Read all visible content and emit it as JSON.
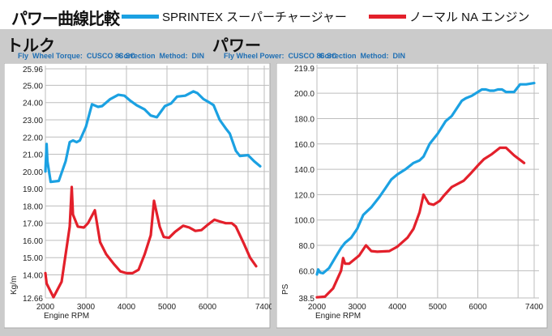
{
  "header": {
    "title": "パワー曲線比較",
    "legend": [
      {
        "label": "SPRINTEX スーパーチャージャー",
        "color": "#1ba1e2"
      },
      {
        "label": "ノーマル NA エンジン",
        "color": "#e3202b"
      }
    ]
  },
  "chart_data": [
    {
      "type": "line",
      "title": "トルク",
      "subtitle": "Fly  Wheel Torque:  CUSCO 86 SC",
      "correction": "Correction  Method:  DIN",
      "xlabel": "Engine RPM",
      "ylabel": "Kg/m",
      "xlim": [
        2000,
        7400
      ],
      "ylim": [
        12.66,
        25.96
      ],
      "xticks": [
        2000,
        3000,
        4000,
        5000,
        6000,
        7400
      ],
      "xgrid": [
        2000,
        3000,
        4000,
        5000,
        6000,
        7000,
        7400
      ],
      "yticks": [
        "12.66",
        "14.00",
        "15.00",
        "16.00",
        "17.00",
        "18.00",
        "19.00",
        "20.00",
        "21.00",
        "22.00",
        "23.00",
        "24.00",
        "25.00",
        "25.96"
      ],
      "series": [
        {
          "name": "SPRINTEX スーパーチャージャー",
          "color": "#1ba1e2",
          "points": [
            [
              2000,
              20.0
            ],
            [
              2030,
              21.6
            ],
            [
              2050,
              20.6
            ],
            [
              2130,
              19.4
            ],
            [
              2330,
              19.45
            ],
            [
              2500,
              20.6
            ],
            [
              2600,
              21.7
            ],
            [
              2680,
              21.8
            ],
            [
              2770,
              21.7
            ],
            [
              2850,
              21.8
            ],
            [
              3000,
              22.6
            ],
            [
              3150,
              23.9
            ],
            [
              3300,
              23.75
            ],
            [
              3400,
              23.8
            ],
            [
              3600,
              24.2
            ],
            [
              3800,
              24.45
            ],
            [
              3950,
              24.4
            ],
            [
              4100,
              24.1
            ],
            [
              4250,
              23.85
            ],
            [
              4450,
              23.6
            ],
            [
              4600,
              23.25
            ],
            [
              4750,
              23.15
            ],
            [
              4950,
              23.8
            ],
            [
              5100,
              23.95
            ],
            [
              5250,
              24.35
            ],
            [
              5450,
              24.4
            ],
            [
              5650,
              24.65
            ],
            [
              5750,
              24.55
            ],
            [
              5900,
              24.2
            ],
            [
              6050,
              24.0
            ],
            [
              6150,
              23.85
            ],
            [
              6300,
              23.0
            ],
            [
              6450,
              22.5
            ],
            [
              6550,
              22.2
            ],
            [
              6700,
              21.2
            ],
            [
              6800,
              20.9
            ],
            [
              7000,
              20.95
            ],
            [
              7150,
              20.6
            ],
            [
              7300,
              20.3
            ]
          ]
        },
        {
          "name": "ノーマル NA エンジン",
          "color": "#e3202b",
          "points": [
            [
              2000,
              14.1
            ],
            [
              2030,
              13.5
            ],
            [
              2200,
              12.7
            ],
            [
              2400,
              13.6
            ],
            [
              2600,
              16.8
            ],
            [
              2650,
              19.1
            ],
            [
              2680,
              17.5
            ],
            [
              2800,
              16.8
            ],
            [
              2950,
              16.75
            ],
            [
              3050,
              17.0
            ],
            [
              3220,
              17.75
            ],
            [
              3350,
              15.9
            ],
            [
              3500,
              15.2
            ],
            [
              3700,
              14.6
            ],
            [
              3850,
              14.2
            ],
            [
              4000,
              14.1
            ],
            [
              4150,
              14.1
            ],
            [
              4300,
              14.3
            ],
            [
              4450,
              15.2
            ],
            [
              4600,
              16.3
            ],
            [
              4680,
              18.3
            ],
            [
              4820,
              16.8
            ],
            [
              4920,
              16.2
            ],
            [
              5050,
              16.15
            ],
            [
              5200,
              16.5
            ],
            [
              5400,
              16.85
            ],
            [
              5550,
              16.75
            ],
            [
              5700,
              16.55
            ],
            [
              5850,
              16.6
            ],
            [
              6000,
              16.9
            ],
            [
              6170,
              17.2
            ],
            [
              6300,
              17.1
            ],
            [
              6450,
              17.0
            ],
            [
              6600,
              17.0
            ],
            [
              6700,
              16.8
            ],
            [
              6900,
              15.8
            ],
            [
              7050,
              15.0
            ],
            [
              7200,
              14.5
            ]
          ]
        }
      ]
    },
    {
      "type": "line",
      "title": "パワー",
      "subtitle": "Fly Wheel Power:  CUSCO 86 SC",
      "correction": "Correction  Method:  DIN",
      "xlabel": "Engine RPM",
      "ylabel": "PS",
      "xlim": [
        2000,
        7400
      ],
      "ylim": [
        38.5,
        219.9
      ],
      "xticks": [
        2000,
        3000,
        4000,
        5000,
        6000,
        7400
      ],
      "xgrid": [
        2000,
        3000,
        4000,
        5000,
        6000,
        7000,
        7400
      ],
      "yticks": [
        "38.5",
        "60.0",
        "80.0",
        "100.0",
        "120.0",
        "140.0",
        "160.0",
        "180.0",
        "200.0",
        "219.9"
      ],
      "series": [
        {
          "name": "SPRINTEX スーパーチャージャー",
          "color": "#1ba1e2",
          "points": [
            [
              2000,
              57
            ],
            [
              2030,
              61
            ],
            [
              2080,
              58.5
            ],
            [
              2150,
              58
            ],
            [
              2300,
              62
            ],
            [
              2450,
              70
            ],
            [
              2600,
              78
            ],
            [
              2700,
              82
            ],
            [
              2850,
              86
            ],
            [
              3000,
              93
            ],
            [
              3150,
              104
            ],
            [
              3250,
              107
            ],
            [
              3350,
              110
            ],
            [
              3550,
              118
            ],
            [
              3700,
              125
            ],
            [
              3850,
              132
            ],
            [
              4000,
              136
            ],
            [
              4200,
              140
            ],
            [
              4400,
              145
            ],
            [
              4550,
              147
            ],
            [
              4650,
              150
            ],
            [
              4800,
              160
            ],
            [
              5000,
              168
            ],
            [
              5200,
              178
            ],
            [
              5350,
              182
            ],
            [
              5600,
              194
            ],
            [
              5700,
              196
            ],
            [
              5850,
              198
            ],
            [
              6000,
              201
            ],
            [
              6100,
              203
            ],
            [
              6200,
              203
            ],
            [
              6300,
              202
            ],
            [
              6400,
              202
            ],
            [
              6500,
              203
            ],
            [
              6600,
              203
            ],
            [
              6700,
              201
            ],
            [
              6900,
              201
            ],
            [
              7050,
              207
            ],
            [
              7200,
              207
            ],
            [
              7400,
              208
            ]
          ]
        },
        {
          "name": "ノーマル NA エンジン",
          "color": "#e3202b",
          "points": [
            [
              2000,
              39
            ],
            [
              2200,
              39.5
            ],
            [
              2400,
              46
            ],
            [
              2600,
              60
            ],
            [
              2650,
              70
            ],
            [
              2700,
              65.5
            ],
            [
              2800,
              65.5
            ],
            [
              3050,
              72
            ],
            [
              3220,
              80
            ],
            [
              3350,
              75.5
            ],
            [
              3500,
              75
            ],
            [
              3800,
              75.5
            ],
            [
              4000,
              79
            ],
            [
              4250,
              86
            ],
            [
              4400,
              93
            ],
            [
              4550,
              106
            ],
            [
              4650,
              120
            ],
            [
              4780,
              113
            ],
            [
              4900,
              112
            ],
            [
              5050,
              115
            ],
            [
              5150,
              119
            ],
            [
              5350,
              126
            ],
            [
              5650,
              131
            ],
            [
              5800,
              136
            ],
            [
              6000,
              143
            ],
            [
              6150,
              148
            ],
            [
              6350,
              152
            ],
            [
              6550,
              157
            ],
            [
              6700,
              157
            ],
            [
              6900,
              151
            ],
            [
              7150,
              145
            ]
          ]
        }
      ]
    }
  ]
}
